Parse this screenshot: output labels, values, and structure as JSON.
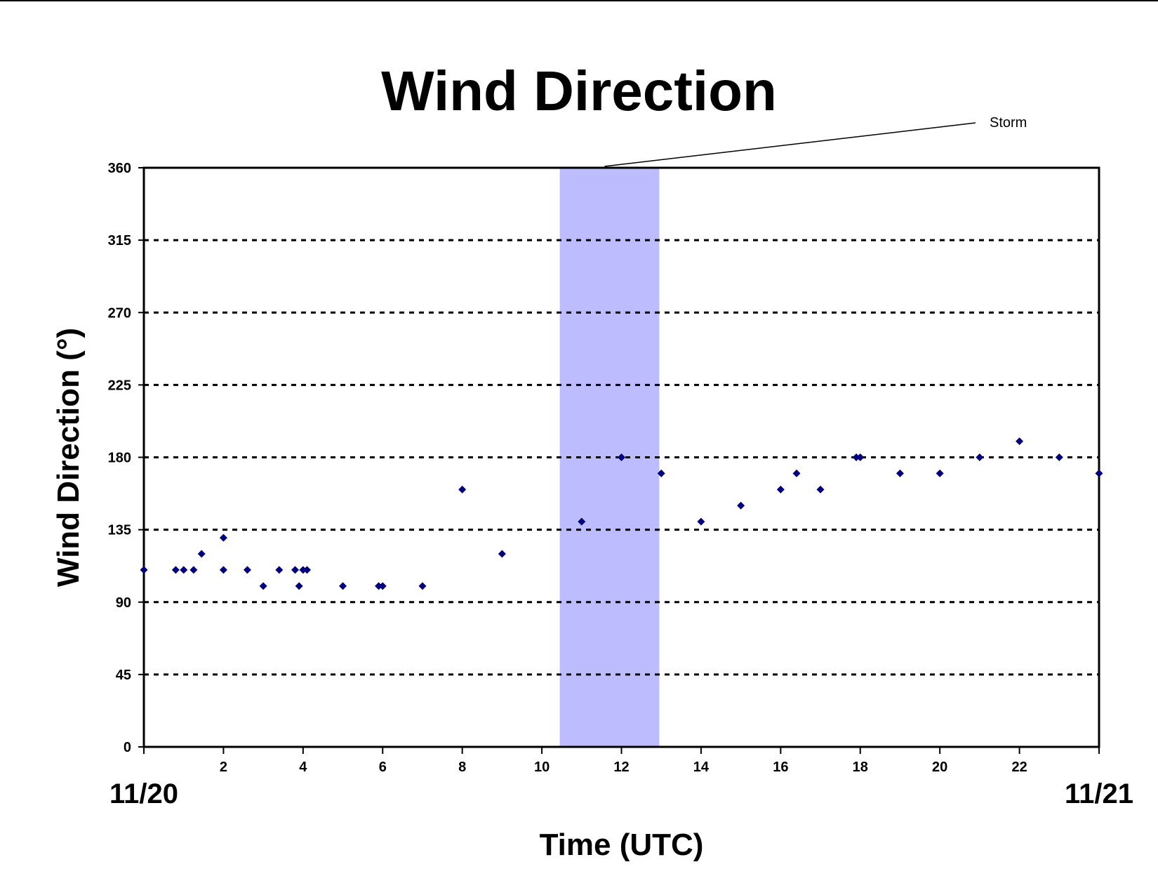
{
  "chart_data": {
    "type": "scatter",
    "title": "Wind Direction",
    "xlabel": "Time (UTC)",
    "ylabel": "Wind Direction (°)",
    "xlim": [
      0,
      24
    ],
    "ylim": [
      0,
      360
    ],
    "x_ticks": [
      0,
      2,
      4,
      6,
      8,
      10,
      12,
      14,
      16,
      18,
      20,
      22,
      24
    ],
    "x_tick_labels": [
      "",
      "2",
      "4",
      "6",
      "8",
      "10",
      "12",
      "14",
      "16",
      "18",
      "20",
      "22",
      ""
    ],
    "y_ticks": [
      0,
      45,
      90,
      135,
      180,
      225,
      270,
      315,
      360
    ],
    "date_start_label": "11/20",
    "date_end_label": "11/21",
    "grid": "horizontal dashed",
    "marker_color": "#00007f",
    "shaded_region": {
      "label": "Storm",
      "x_start": 10.45,
      "x_end": 12.95,
      "color": "#bcbcff"
    },
    "points": [
      [
        0,
        110
      ],
      [
        0.8,
        110
      ],
      [
        1.0,
        110
      ],
      [
        1.25,
        110
      ],
      [
        1.45,
        120
      ],
      [
        2.0,
        110
      ],
      [
        2.0,
        130
      ],
      [
        2.6,
        110
      ],
      [
        3.0,
        100
      ],
      [
        3.4,
        110
      ],
      [
        3.8,
        110
      ],
      [
        3.9,
        100
      ],
      [
        4.0,
        110
      ],
      [
        4.1,
        110
      ],
      [
        5.0,
        100
      ],
      [
        5.9,
        100
      ],
      [
        6.0,
        100
      ],
      [
        7.0,
        100
      ],
      [
        8.0,
        160
      ],
      [
        9.0,
        120
      ],
      [
        11.0,
        140
      ],
      [
        12.0,
        180
      ],
      [
        13.0,
        170
      ],
      [
        14.0,
        140
      ],
      [
        15.0,
        150
      ],
      [
        16.0,
        160
      ],
      [
        16.4,
        170
      ],
      [
        17.0,
        160
      ],
      [
        17.9,
        180
      ],
      [
        18.0,
        180
      ],
      [
        19.0,
        170
      ],
      [
        20.0,
        170
      ],
      [
        21.0,
        180
      ],
      [
        22.0,
        190
      ],
      [
        23.0,
        180
      ],
      [
        24.0,
        170
      ]
    ]
  }
}
